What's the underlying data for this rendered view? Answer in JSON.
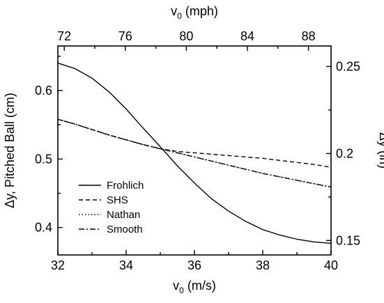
{
  "chart_data": {
    "type": "line",
    "title": "",
    "xlabel_bottom": {
      "main": "v",
      "sub": "0",
      "rest": " (m/s)"
    },
    "xlabel_top": {
      "main": "v",
      "sub": "0",
      "rest": " (mph)"
    },
    "ylabel_left": "Δy, Pitched Ball (cm)",
    "ylabel_right": "Δy (in)",
    "xlim": [
      32,
      40
    ],
    "ylim": [
      0.36,
      0.665
    ],
    "xlim_top_mph": [
      71.58,
      89.48
    ],
    "ylim_right_in": [
      0.1417,
      0.2618
    ],
    "xticks": [
      "32",
      "34",
      "36",
      "38",
      "40"
    ],
    "xticks_top": [
      "72",
      "76",
      "80",
      "84",
      "88"
    ],
    "yticks": [
      "0.4",
      "0.5",
      "0.6"
    ],
    "yticks_right": [
      "0.15",
      "0.2",
      "0.25"
    ],
    "legend_position": "lower-left",
    "x": [
      32,
      32.5,
      33,
      33.5,
      34,
      34.5,
      35,
      35.5,
      36,
      36.5,
      37,
      37.5,
      38,
      38.5,
      39,
      39.5,
      40
    ],
    "series": [
      {
        "name": "Frohlich",
        "style": "solid",
        "values": [
          0.64,
          0.632,
          0.618,
          0.598,
          0.573,
          0.545,
          0.518,
          0.49,
          0.465,
          0.442,
          0.424,
          0.409,
          0.397,
          0.389,
          0.383,
          0.379,
          0.377
        ]
      },
      {
        "name": "SHS",
        "style": "dashed",
        "values": [
          0.558,
          0.551,
          0.543,
          0.535,
          0.528,
          0.521,
          0.515,
          0.511,
          0.509,
          0.507,
          0.505,
          0.503,
          0.501,
          0.498,
          0.495,
          0.492,
          0.488
        ]
      },
      {
        "name": "Nathan",
        "style": "dotted",
        "values": [
          0.558,
          0.551,
          0.543,
          0.535,
          0.528,
          0.521,
          0.515,
          0.509,
          0.503,
          0.497,
          0.491,
          0.485,
          0.479,
          0.474,
          0.469,
          0.464,
          0.459
        ]
      },
      {
        "name": "Smooth",
        "style": "dashdot",
        "values": [
          0.558,
          0.551,
          0.543,
          0.535,
          0.528,
          0.521,
          0.515,
          0.509,
          0.503,
          0.497,
          0.491,
          0.485,
          0.479,
          0.474,
          0.469,
          0.464,
          0.459
        ]
      }
    ]
  }
}
